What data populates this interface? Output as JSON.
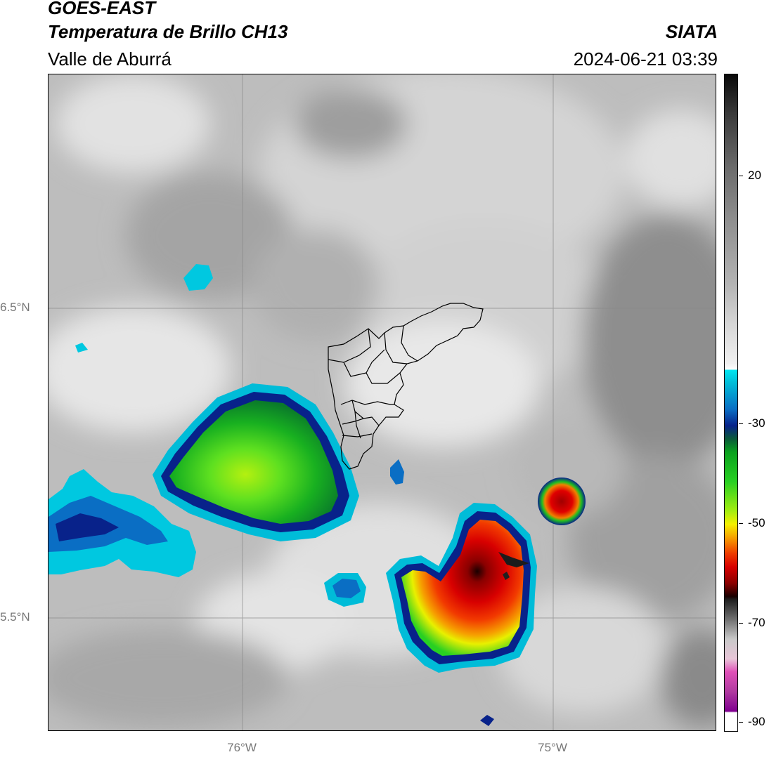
{
  "header": {
    "satellite": "GOES-EAST",
    "product": "Temperatura de Brillo CH13",
    "institution": "SIATA",
    "region": "Valle de Aburrá",
    "datetime": "2024-06-21 03:39"
  },
  "axes": {
    "lat_labels": [
      "6.5°N",
      "5.5°N"
    ],
    "lon_labels": [
      "76°W",
      "75°W"
    ]
  },
  "colorbar": {
    "tick_labels": [
      "20",
      "-30",
      "-50",
      "-70",
      "-90"
    ],
    "colors": {
      "cold_top": "#d80000",
      "cloud_green": "#28d022",
      "cyan": "#00e6f0",
      "navy": "#08228a",
      "magenta": "#b03aa0"
    }
  },
  "layers": {
    "basemap": "satellite-brightness-temperature",
    "boundary": "municipal-boundaries-valle-de-aburra"
  }
}
